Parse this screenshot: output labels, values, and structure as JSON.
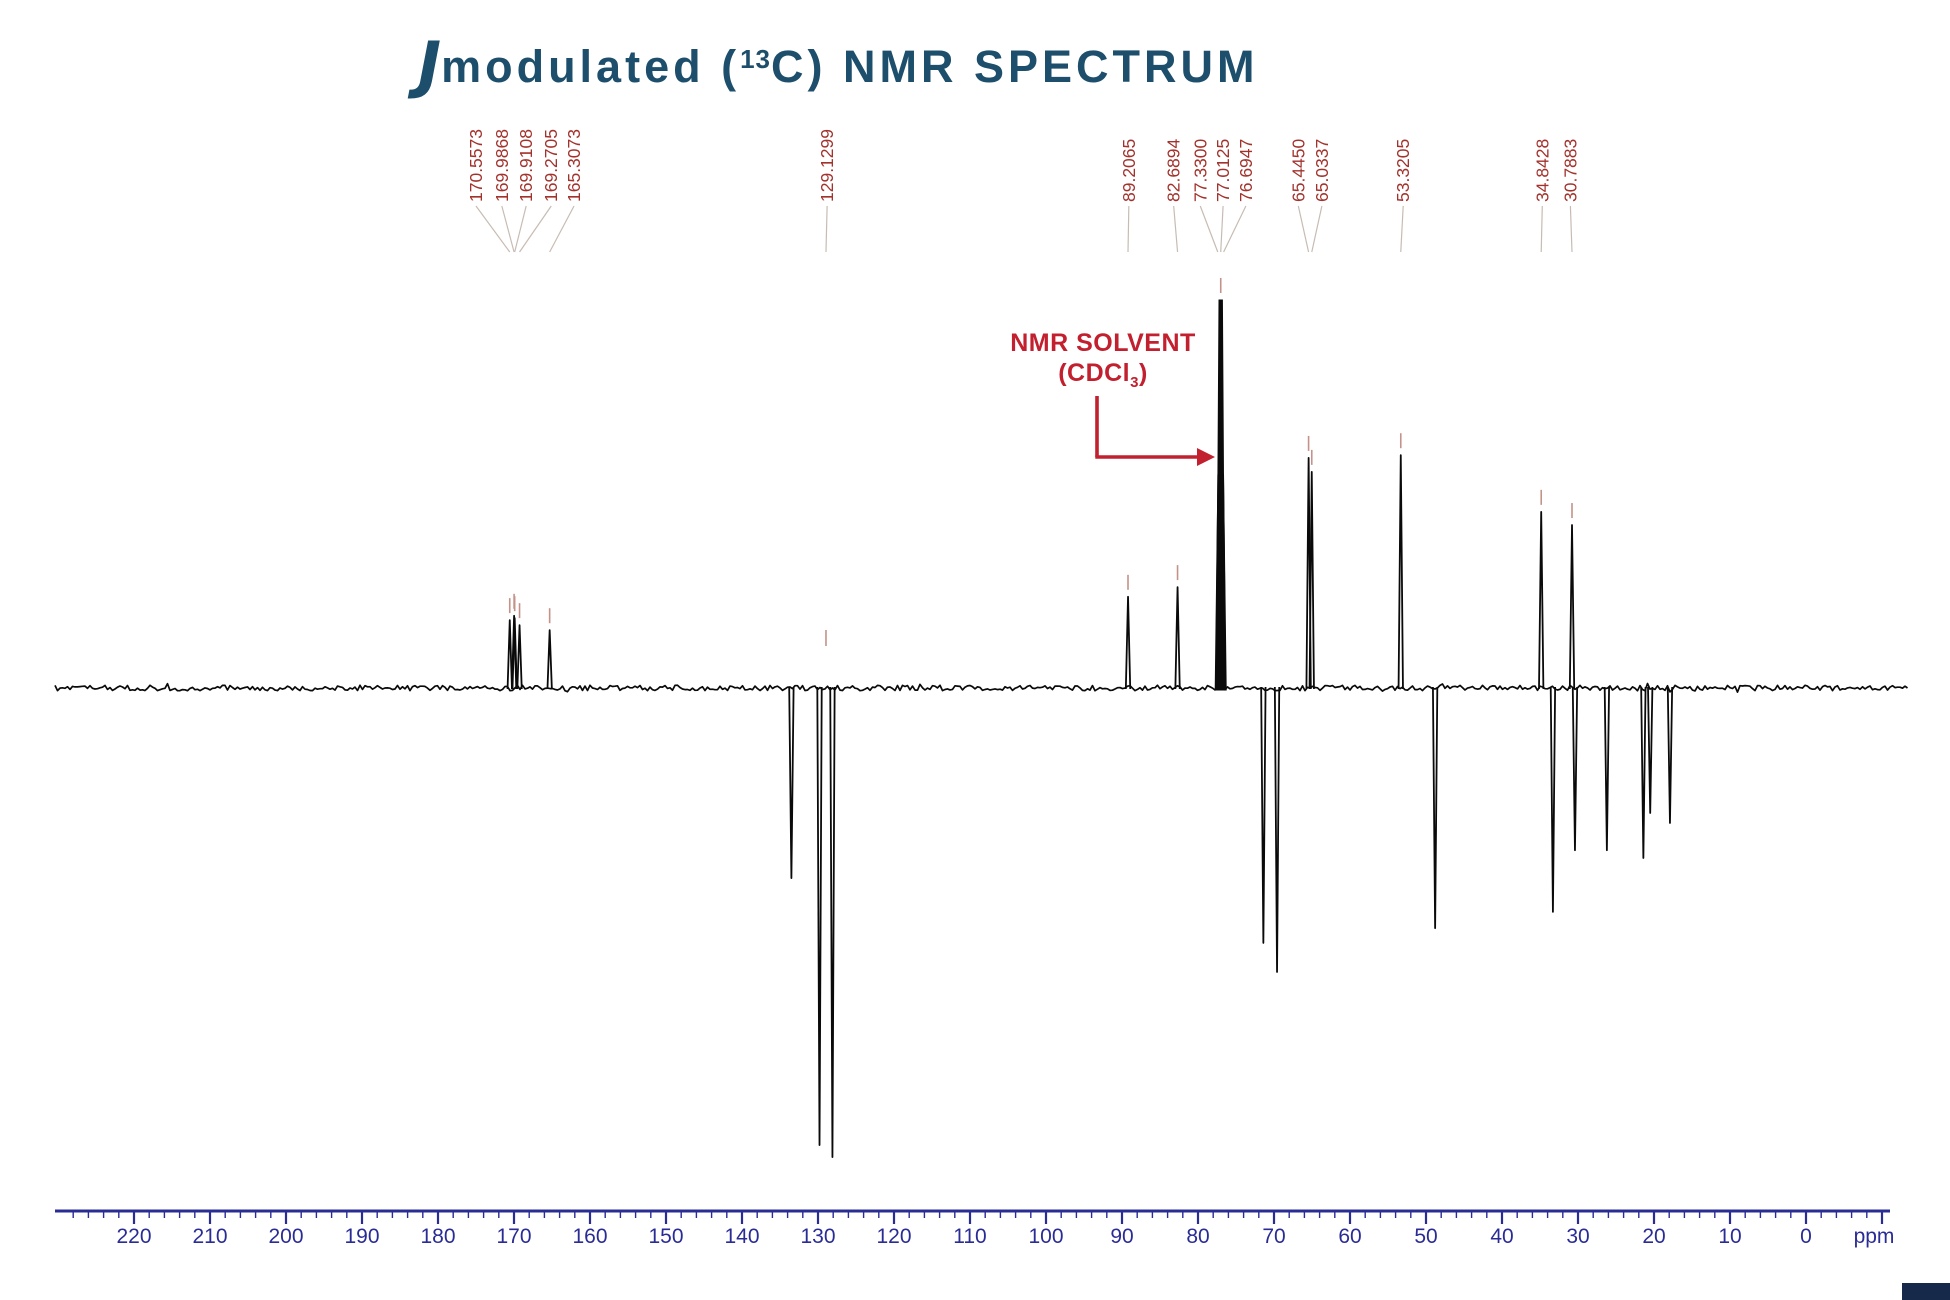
{
  "title": {
    "j": "J",
    "part1": "modulated (",
    "sup": "13",
    "part2": "C) NMR SPECTRUM"
  },
  "solvent_annotation": {
    "line1": "NMR SOLVENT",
    "line2_pre": "(CDCl",
    "line2_sub": "3",
    "line2_post": ")"
  },
  "colors": {
    "title": "#1d4e6b",
    "peak_label": "#a2322c",
    "annotation": "#c2202e",
    "axis": "#2a2c96",
    "trace": "#0a0a0a",
    "connector": "#c7bcb4",
    "pointer_tick": "#c49288",
    "corner_box": "#16294b"
  },
  "axis": {
    "unit_label": "ppm",
    "tick_labels": [
      "220",
      "210",
      "200",
      "190",
      "180",
      "170",
      "160",
      "150",
      "140",
      "130",
      "120",
      "110",
      "100",
      "90",
      "80",
      "70",
      "60",
      "50",
      "40",
      "30",
      "20",
      "10",
      "0"
    ],
    "major_step": 10,
    "minor_step": 2,
    "range_ppm": [
      228,
      -10
    ]
  },
  "chart_data": {
    "type": "line",
    "title": "J-modulated (13C) NMR spectrum",
    "xlabel": "ppm",
    "x_range": [
      230,
      -12
    ],
    "grid": false,
    "solvent_peak_ppm": 77.0125,
    "peaks": [
      {
        "ppm": 170.5573,
        "rel_intensity": 0.175
      },
      {
        "ppm": 169.9868,
        "rel_intensity": 0.186
      },
      {
        "ppm": 169.9108,
        "rel_intensity": 0.18
      },
      {
        "ppm": 169.2705,
        "rel_intensity": 0.162
      },
      {
        "ppm": 165.3073,
        "rel_intensity": 0.149
      },
      {
        "ppm": 133.5,
        "rel_intensity": -0.49
      },
      {
        "ppm": 129.8,
        "rel_intensity": -1.178
      },
      {
        "ppm": 128.1,
        "rel_intensity": -1.209
      },
      {
        "ppm": 89.2065,
        "rel_intensity": 0.235
      },
      {
        "ppm": 82.6894,
        "rel_intensity": 0.26
      },
      {
        "ppm": 77.33,
        "rel_intensity": 0.55
      },
      {
        "ppm": 77.0125,
        "rel_intensity": 1.0,
        "solvent": true
      },
      {
        "ppm": 76.6947,
        "rel_intensity": 0.55
      },
      {
        "ppm": 71.4,
        "rel_intensity": -0.657
      },
      {
        "ppm": 69.6,
        "rel_intensity": -0.732
      },
      {
        "ppm": 65.445,
        "rel_intensity": 0.593
      },
      {
        "ppm": 65.0337,
        "rel_intensity": 0.557
      },
      {
        "ppm": 53.3205,
        "rel_intensity": 0.6
      },
      {
        "ppm": 48.8,
        "rel_intensity": -0.619
      },
      {
        "ppm": 34.8428,
        "rel_intensity": 0.454
      },
      {
        "ppm": 33.3,
        "rel_intensity": -0.577
      },
      {
        "ppm": 30.7883,
        "rel_intensity": 0.42
      },
      {
        "ppm": 30.4,
        "rel_intensity": -0.418
      },
      {
        "ppm": 26.2,
        "rel_intensity": -0.418
      },
      {
        "ppm": 21.4,
        "rel_intensity": -0.438
      },
      {
        "ppm": 20.5,
        "rel_intensity": -0.322
      },
      {
        "ppm": 17.9,
        "rel_intensity": -0.348
      }
    ],
    "peak_labels": [
      {
        "text": "170.5573",
        "label_ppm": 175.0,
        "target_ppm": 170.56
      },
      {
        "text": "169.9868",
        "label_ppm": 171.6,
        "target_ppm": 169.99
      },
      {
        "text": "169.9108",
        "label_ppm": 168.4,
        "target_ppm": 169.91
      },
      {
        "text": "169.2705",
        "label_ppm": 165.1,
        "target_ppm": 169.27
      },
      {
        "text": "165.3073",
        "label_ppm": 162.1,
        "target_ppm": 165.31
      },
      {
        "text": "129.1299",
        "label_ppm": 128.8,
        "target_ppm": 128.95
      },
      {
        "text": "89.2065",
        "label_ppm": 89.1,
        "target_ppm": 89.21
      },
      {
        "text": "82.6894",
        "label_ppm": 83.2,
        "target_ppm": 82.69
      },
      {
        "text": "77.3300",
        "label_ppm": 79.7,
        "target_ppm": 77.4,
        "tick": false
      },
      {
        "text": "77.0125",
        "label_ppm": 76.7,
        "target_ppm": 77.01
      },
      {
        "text": "76.6947",
        "label_ppm": 73.7,
        "target_ppm": 76.63,
        "tick": false
      },
      {
        "text": "65.4450",
        "label_ppm": 66.8,
        "target_ppm": 65.45
      },
      {
        "text": "65.0337",
        "label_ppm": 63.7,
        "target_ppm": 65.03
      },
      {
        "text": "53.3205",
        "label_ppm": 53.0,
        "target_ppm": 53.32
      },
      {
        "text": "34.8428",
        "label_ppm": 34.7,
        "target_ppm": 34.84
      },
      {
        "text": "30.7883",
        "label_ppm": 31.0,
        "target_ppm": 30.79
      }
    ]
  }
}
